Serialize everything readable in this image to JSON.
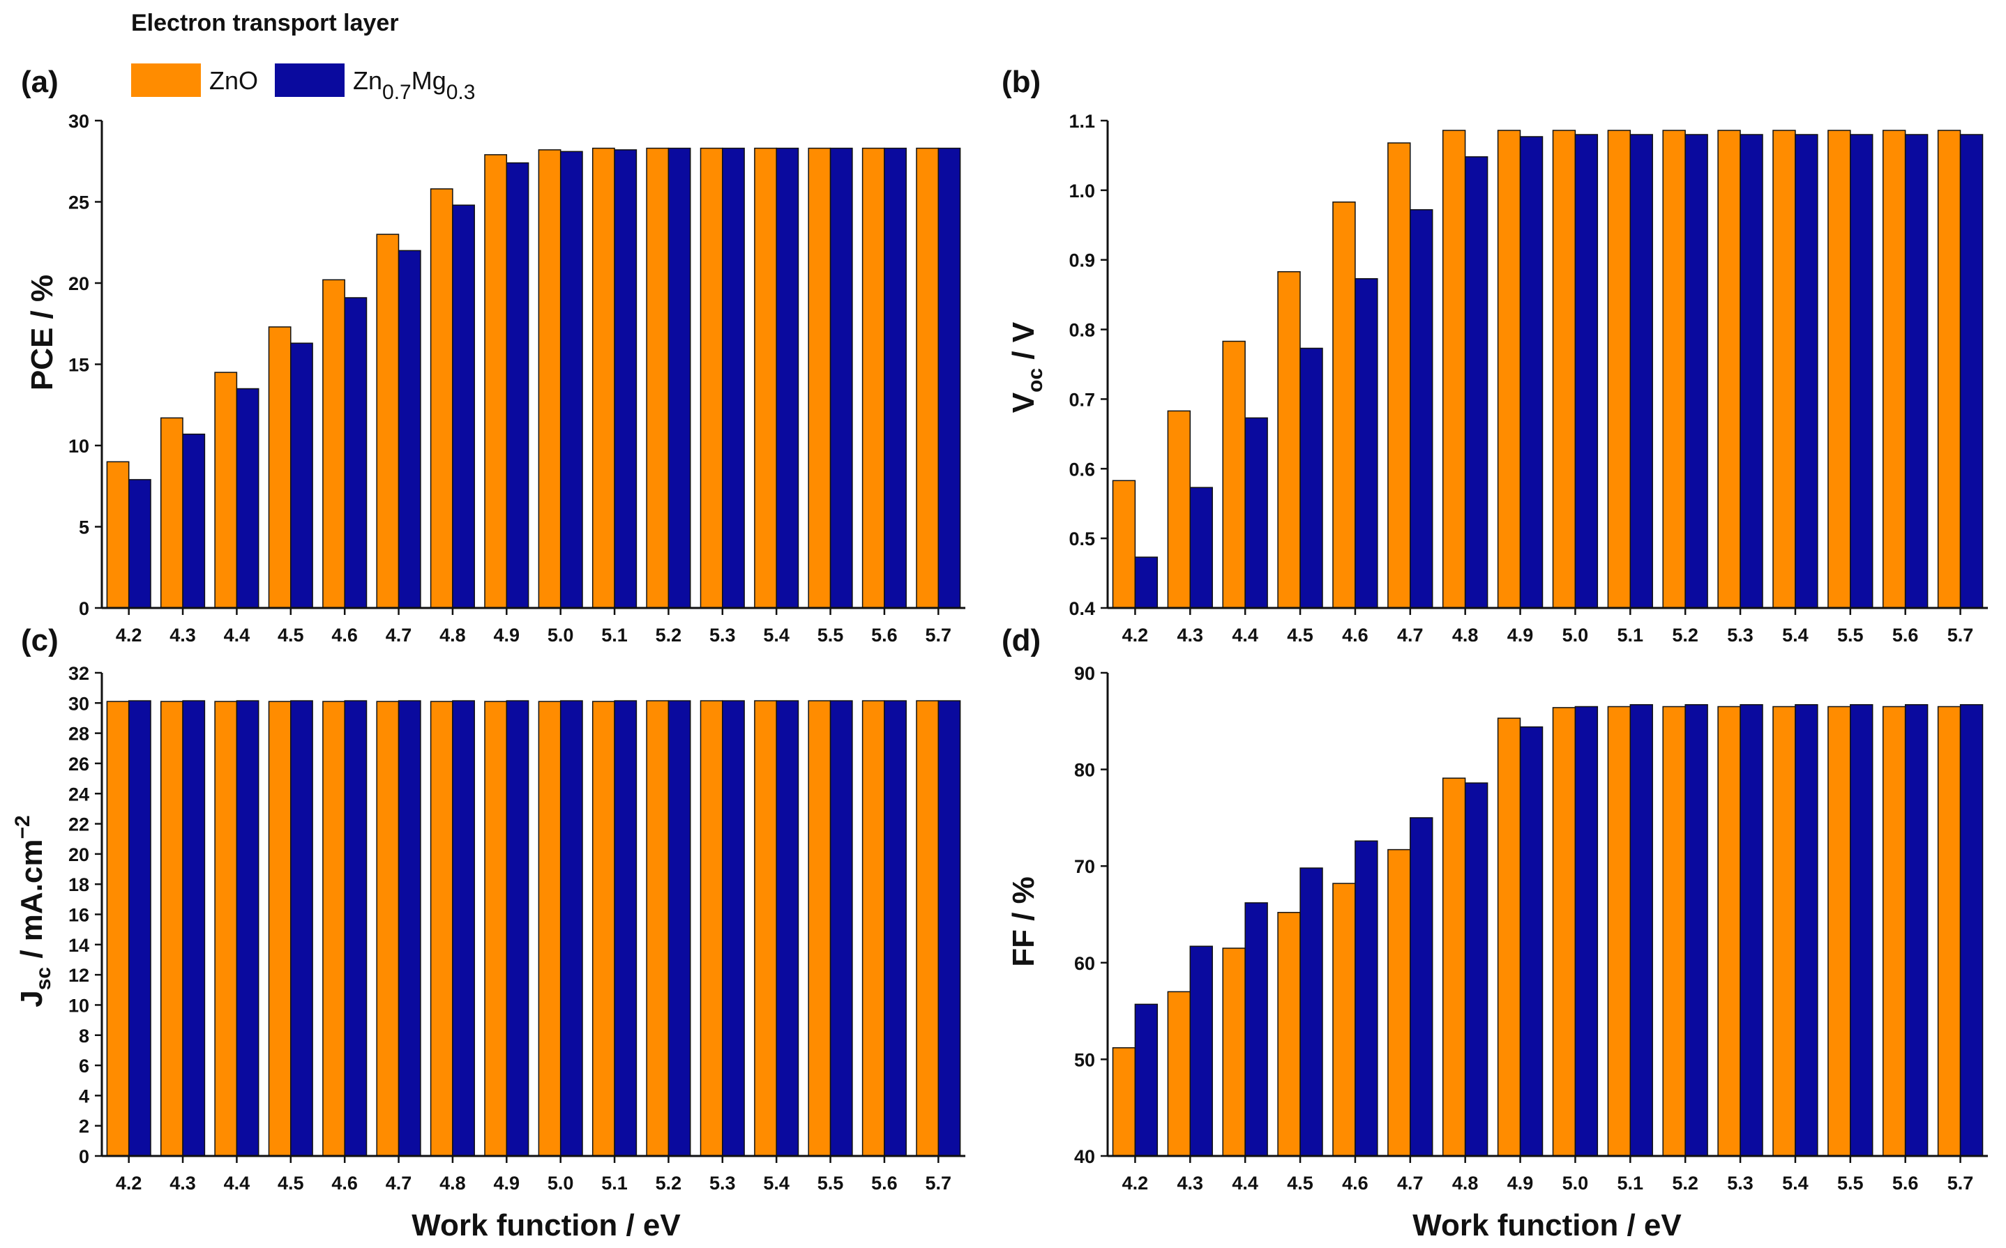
{
  "legend": {
    "title": "Electron transport layer",
    "items": [
      {
        "name": "ZnO",
        "label": "ZnO",
        "color": "#FF8C00"
      },
      {
        "name": "Zn0.7Mg0.3",
        "label_main": "Zn",
        "sub1": "0.7",
        "label_mid": "Mg",
        "sub2": "0.3",
        "color": "#0A0A9E"
      }
    ]
  },
  "xlabel": "Work function / eV",
  "chart_data": [
    {
      "panel": "(a)",
      "type": "bar",
      "ylabel": "PCE / %",
      "ylim": [
        0,
        30
      ],
      "yticks": [
        0,
        5,
        10,
        15,
        20,
        25,
        30
      ],
      "ytick_labels": [
        "0",
        "5",
        "10",
        "15",
        "20",
        "25",
        "30"
      ],
      "categories": [
        "4.2",
        "4.3",
        "4.4",
        "4.5",
        "4.6",
        "4.7",
        "4.8",
        "4.9",
        "5.0",
        "5.1",
        "5.2",
        "5.3",
        "5.4",
        "5.5",
        "5.6",
        "5.7"
      ],
      "series": [
        {
          "name": "ZnO",
          "values": [
            9.0,
            11.7,
            14.5,
            17.3,
            20.2,
            23.0,
            25.8,
            27.9,
            28.2,
            28.3,
            28.3,
            28.3,
            28.3,
            28.3,
            28.3,
            28.3
          ]
        },
        {
          "name": "Zn0.7Mg0.3",
          "values": [
            7.9,
            10.7,
            13.5,
            16.3,
            19.1,
            22.0,
            24.8,
            27.4,
            28.1,
            28.2,
            28.3,
            28.3,
            28.3,
            28.3,
            28.3,
            28.3
          ]
        }
      ]
    },
    {
      "panel": "(b)",
      "type": "bar",
      "ylabel_main": "V",
      "ylabel_sub": "oc",
      "ylabel_rest": " / V",
      "ylim": [
        0.4,
        1.1
      ],
      "yticks": [
        0.4,
        0.5,
        0.6,
        0.7,
        0.8,
        0.9,
        1.0,
        1.1
      ],
      "ytick_labels": [
        "0.4",
        "0.5",
        "0.6",
        "0.7",
        "0.8",
        "0.9",
        "1.0",
        "1.1"
      ],
      "categories": [
        "4.2",
        "4.3",
        "4.4",
        "4.5",
        "4.6",
        "4.7",
        "4.8",
        "4.9",
        "5.0",
        "5.1",
        "5.2",
        "5.3",
        "5.4",
        "5.5",
        "5.6",
        "5.7"
      ],
      "series": [
        {
          "name": "ZnO",
          "values": [
            0.583,
            0.683,
            0.783,
            0.883,
            0.983,
            1.068,
            1.086,
            1.086,
            1.086,
            1.086,
            1.086,
            1.086,
            1.086,
            1.086,
            1.086,
            1.086
          ]
        },
        {
          "name": "Zn0.7Mg0.3",
          "values": [
            0.473,
            0.573,
            0.673,
            0.773,
            0.873,
            0.972,
            1.048,
            1.077,
            1.08,
            1.08,
            1.08,
            1.08,
            1.08,
            1.08,
            1.08,
            1.08
          ]
        }
      ]
    },
    {
      "panel": "(c)",
      "type": "bar",
      "ylabel_main": "J",
      "ylabel_sub": "sc",
      "ylabel_rest": " / mA.cm",
      "ylabel_sup": "−2",
      "ylim": [
        0,
        32
      ],
      "yticks": [
        0,
        2,
        4,
        6,
        8,
        10,
        12,
        14,
        16,
        18,
        20,
        22,
        24,
        26,
        28,
        30,
        32
      ],
      "ytick_labels": [
        "0",
        "2",
        "4",
        "6",
        "8",
        "10",
        "12",
        "14",
        "16",
        "18",
        "20",
        "22",
        "24",
        "26",
        "28",
        "30",
        "32"
      ],
      "categories": [
        "4.2",
        "4.3",
        "4.4",
        "4.5",
        "4.6",
        "4.7",
        "4.8",
        "4.9",
        "5.0",
        "5.1",
        "5.2",
        "5.3",
        "5.4",
        "5.5",
        "5.6",
        "5.7"
      ],
      "series": [
        {
          "name": "ZnO",
          "values": [
            30.1,
            30.1,
            30.1,
            30.1,
            30.1,
            30.1,
            30.1,
            30.1,
            30.1,
            30.1,
            30.15,
            30.15,
            30.15,
            30.15,
            30.15,
            30.15
          ]
        },
        {
          "name": "Zn0.7Mg0.3",
          "values": [
            30.15,
            30.15,
            30.15,
            30.15,
            30.15,
            30.15,
            30.15,
            30.15,
            30.15,
            30.15,
            30.15,
            30.15,
            30.15,
            30.15,
            30.15,
            30.15
          ]
        }
      ]
    },
    {
      "panel": "(d)",
      "type": "bar",
      "ylabel": "FF / %",
      "ylim": [
        40,
        90
      ],
      "yticks": [
        40,
        50,
        60,
        70,
        80,
        90
      ],
      "ytick_labels": [
        "40",
        "50",
        "60",
        "70",
        "80",
        "90"
      ],
      "categories": [
        "4.2",
        "4.3",
        "4.4",
        "4.5",
        "4.6",
        "4.7",
        "4.8",
        "4.9",
        "5.0",
        "5.1",
        "5.2",
        "5.3",
        "5.4",
        "5.5",
        "5.6",
        "5.7"
      ],
      "series": [
        {
          "name": "ZnO",
          "values": [
            51.2,
            57.0,
            61.5,
            65.2,
            68.2,
            71.7,
            79.1,
            85.3,
            86.4,
            86.5,
            86.5,
            86.5,
            86.5,
            86.5,
            86.5,
            86.5
          ]
        },
        {
          "name": "Zn0.7Mg0.3",
          "values": [
            55.7,
            61.7,
            66.2,
            69.8,
            72.6,
            75.0,
            78.6,
            84.4,
            86.5,
            86.7,
            86.7,
            86.7,
            86.7,
            86.7,
            86.7,
            86.7
          ]
        }
      ]
    }
  ]
}
